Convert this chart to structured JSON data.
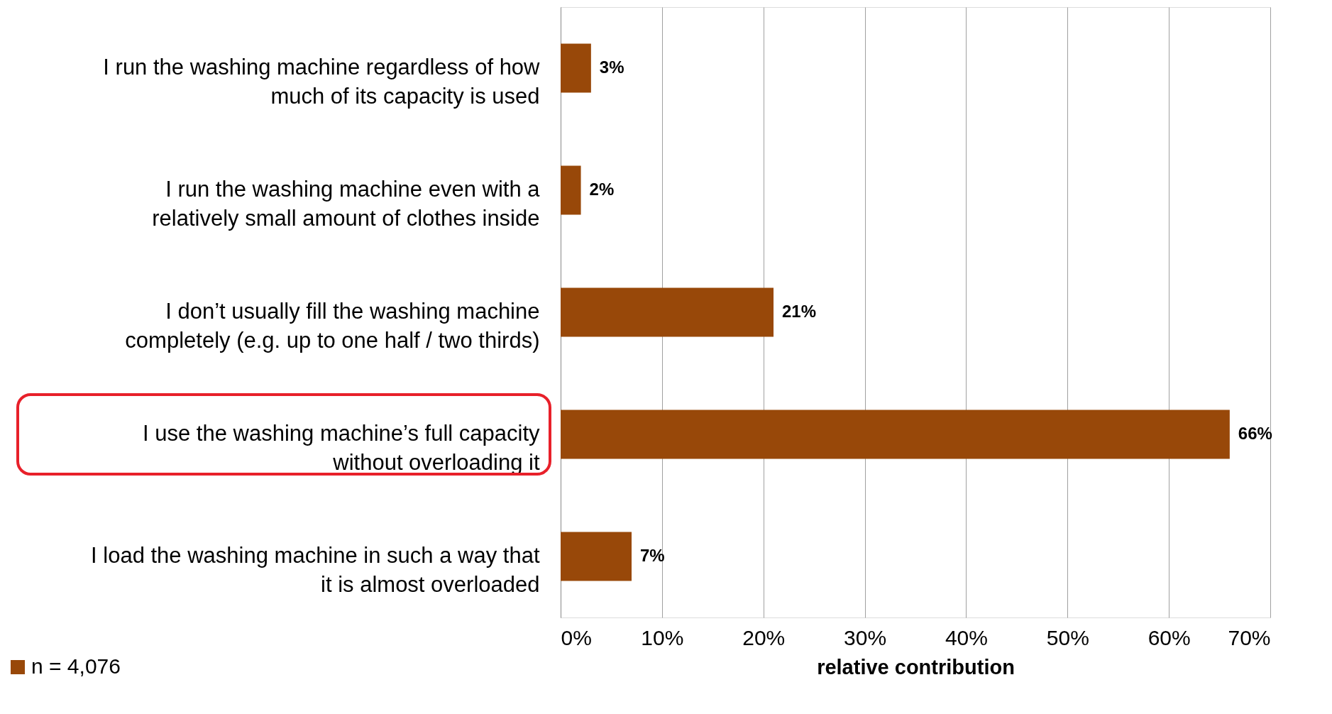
{
  "chart_data": {
    "type": "bar",
    "orientation": "horizontal",
    "xlabel": "relative contribution",
    "categories": [
      "I run the washing machine regardless of how much of its capacity is used",
      "I run the washing machine even with a relatively small amount of clothes inside",
      "I don’t usually fill the washing machine completely (e.g. up to one half / two thirds)",
      "I use the washing machine’s full capacity without overloading it",
      "I load the washing machine in such a way that it is almost overloaded"
    ],
    "series": [
      {
        "name": "n = 4,076",
        "color": "#984809",
        "values": [
          3,
          2,
          21,
          66,
          7
        ],
        "value_labels": [
          "3%",
          "2%",
          "21%",
          "66%",
          "7%"
        ]
      }
    ],
    "xlim": [
      0,
      70
    ],
    "xticks": [
      {
        "value": 0,
        "label": "0%"
      },
      {
        "value": 10,
        "label": "10%"
      },
      {
        "value": 20,
        "label": "20%"
      },
      {
        "value": 30,
        "label": "30%"
      },
      {
        "value": 40,
        "label": "40%"
      },
      {
        "value": 50,
        "label": "50%"
      },
      {
        "value": 60,
        "label": "60%"
      },
      {
        "value": 70,
        "label": "70%"
      }
    ],
    "grid": "x",
    "legend": "bottom left"
  }
}
